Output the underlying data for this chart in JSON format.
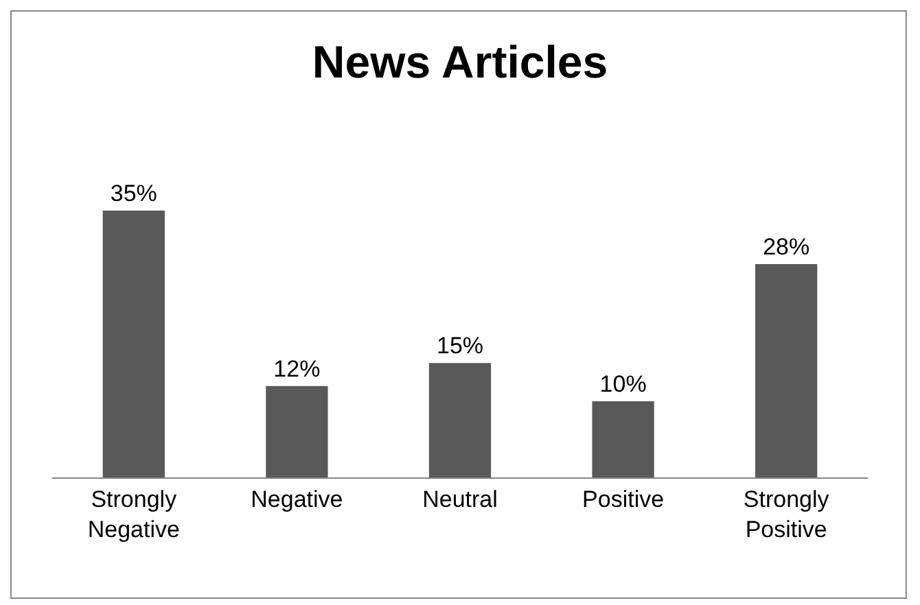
{
  "chart_data": {
    "type": "bar",
    "title": "News Articles",
    "categories": [
      "Strongly Negative",
      "Negative",
      "Neutral",
      "Positive",
      "Strongly Positive"
    ],
    "values": [
      35,
      12,
      15,
      10,
      28
    ],
    "value_labels": [
      "35%",
      "12%",
      "15%",
      "10%",
      "28%"
    ],
    "color": "#595959",
    "tick_labels": "x"
  }
}
